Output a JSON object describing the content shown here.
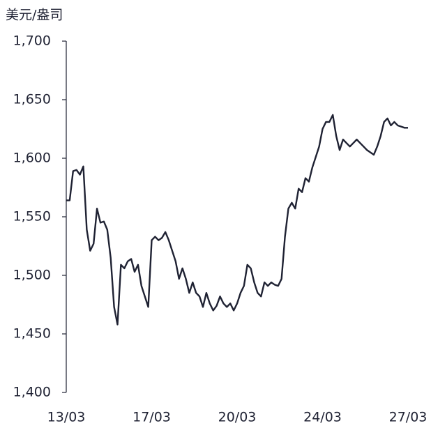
{
  "chart_data": {
    "type": "line",
    "y_label": "美元/盎司",
    "categories": [
      "13/03",
      null,
      null,
      null,
      null,
      null,
      null,
      null,
      null,
      null,
      null,
      null,
      null,
      null,
      null,
      null,
      null,
      null,
      null,
      null,
      null,
      null,
      null,
      null,
      null,
      "17/03",
      null,
      null,
      null,
      null,
      null,
      null,
      null,
      null,
      null,
      null,
      null,
      null,
      null,
      null,
      null,
      null,
      null,
      null,
      null,
      null,
      null,
      null,
      null,
      null,
      "20/03",
      null,
      null,
      null,
      null,
      null,
      null,
      null,
      null,
      null,
      null,
      null,
      null,
      null,
      null,
      null,
      null,
      null,
      null,
      null,
      null,
      null,
      null,
      null,
      null,
      "24/03",
      null,
      null,
      null,
      null,
      null,
      null,
      null,
      null,
      null,
      null,
      null,
      null,
      null,
      null,
      null,
      null,
      null,
      null,
      null,
      null,
      null,
      null,
      null,
      null,
      "27/03"
    ],
    "series": [
      {
        "color": "#1f2233",
        "values": [
          1564,
          1564,
          1589,
          1590,
          1586,
          1593,
          1539,
          1521,
          1527,
          1557,
          1545,
          1546,
          1539,
          1515,
          1473,
          1458,
          1509,
          1506,
          1512,
          1514,
          1503,
          1509,
          1491,
          1482,
          1473,
          1530,
          1533,
          1530,
          1532,
          1537,
          1530,
          1521,
          1512,
          1497,
          1506,
          1497,
          1485,
          1494,
          1485,
          1482,
          1473,
          1485,
          1476,
          1470,
          1474,
          1482,
          1476,
          1473,
          1476,
          1470,
          1476,
          1485,
          1491,
          1509,
          1506,
          1494,
          1485,
          1482,
          1494,
          1491,
          1494,
          1492,
          1491,
          1497,
          1533,
          1557,
          1562,
          1557,
          1574,
          1571,
          1583,
          1580,
          1592,
          1601,
          1610,
          1625,
          1631,
          1631,
          1637,
          1619,
          1607,
          1616,
          1613,
          1610,
          1613,
          1616,
          1613,
          1610,
          1607,
          1605,
          1603,
          1610,
          1619,
          1631,
          1634,
          1628,
          1631,
          1628,
          1627,
          1626,
          1626
        ]
      }
    ],
    "ylim": [
      1400,
      1700
    ],
    "yticks": [
      {
        "value": 1400,
        "label": "1,400"
      },
      {
        "value": 1450,
        "label": "1,450"
      },
      {
        "value": 1500,
        "label": "1,500"
      },
      {
        "value": 1550,
        "label": "1,550"
      },
      {
        "value": 1600,
        "label": "1,600"
      },
      {
        "value": 1650,
        "label": "1,650"
      },
      {
        "value": 1700,
        "label": "1,700"
      }
    ]
  }
}
